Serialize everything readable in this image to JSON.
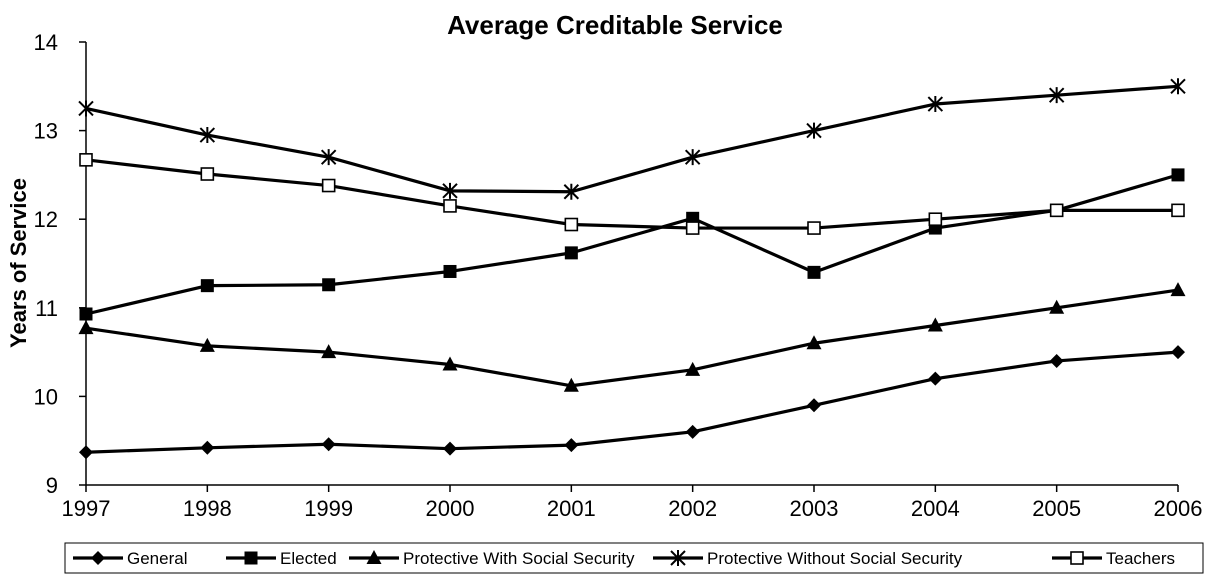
{
  "chart_data": {
    "type": "line",
    "title": "Average Creditable Service",
    "xlabel": "",
    "ylabel": "Years of Service",
    "categories": [
      "1997",
      "1998",
      "1999",
      "2000",
      "2001",
      "2002",
      "2003",
      "2004",
      "2005",
      "2006"
    ],
    "ylim": [
      9,
      14
    ],
    "yticks": [
      "9",
      "10",
      "11",
      "12",
      "13",
      "14"
    ],
    "grid": false,
    "legend_position": "bottom",
    "series": [
      {
        "name": "General",
        "marker": "diamond",
        "values": [
          9.37,
          9.42,
          9.46,
          9.41,
          9.45,
          9.6,
          9.9,
          10.2,
          10.4,
          10.5
        ]
      },
      {
        "name": "Elected",
        "marker": "filled-square",
        "values": [
          10.93,
          11.25,
          11.26,
          11.41,
          11.62,
          12.01,
          11.4,
          11.9,
          12.1,
          12.5
        ]
      },
      {
        "name": "Protective With Social Security",
        "marker": "triangle",
        "values": [
          10.77,
          10.57,
          10.5,
          10.36,
          10.12,
          10.3,
          10.6,
          10.8,
          11.0,
          11.2
        ]
      },
      {
        "name": "Protective Without Social Security",
        "marker": "asterisk",
        "values": [
          13.25,
          12.95,
          12.7,
          12.32,
          12.31,
          12.7,
          13.0,
          13.3,
          13.4,
          13.5
        ]
      },
      {
        "name": "Teachers",
        "marker": "open-square",
        "values": [
          12.67,
          12.51,
          12.38,
          12.15,
          11.94,
          11.9,
          11.9,
          12.0,
          12.1,
          12.1
        ]
      }
    ]
  }
}
